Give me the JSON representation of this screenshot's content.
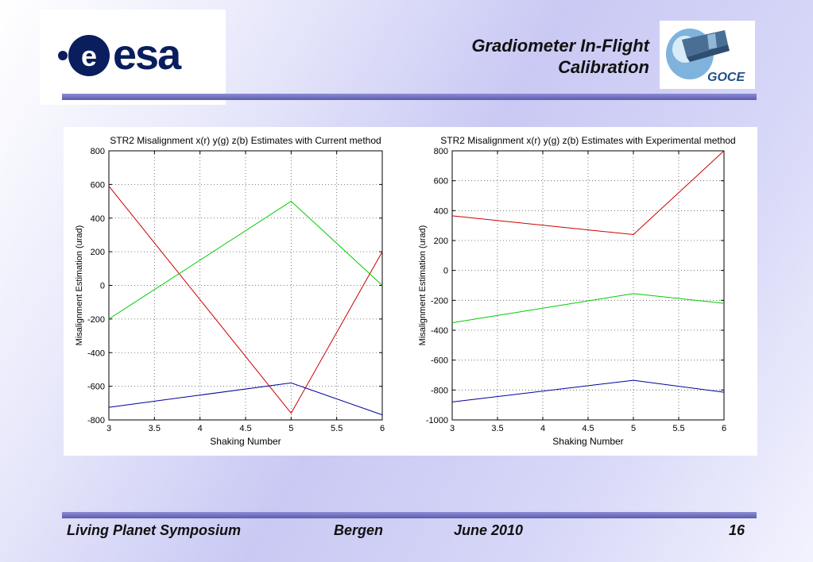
{
  "header": {
    "title_line1": "Gradiometer In-Flight",
    "title_line2": "Calibration",
    "esa_logo_text": "esa",
    "goce_logo_text": "GOCE"
  },
  "footer": {
    "left": "Living Planet Symposium",
    "center": "Bergen",
    "date": "June 2010",
    "page": "16"
  },
  "colors": {
    "x_series": "#cc0000",
    "y_series": "#00cc00",
    "z_series": "#000099",
    "esa_blue": "#0a1e5e",
    "bar": "#6b6bbd"
  },
  "chart_data": [
    {
      "type": "line",
      "title": "STR2 Misalignment x(r) y(g) z(b) Estimates with Current method",
      "xlabel": "Shaking Number",
      "ylabel": "Misalignment Estimation (urad)",
      "xlim": [
        3,
        6
      ],
      "ylim": [
        -800,
        800
      ],
      "xticks": [
        "3",
        "3.5",
        "4",
        "4.5",
        "5",
        "5.5",
        "6"
      ],
      "yticks": [
        "-800",
        "-600",
        "-400",
        "-200",
        "0",
        "200",
        "400",
        "600",
        "800"
      ],
      "grid": true,
      "x": [
        3,
        5,
        6
      ],
      "series": [
        {
          "name": "x",
          "color": "#cc0000",
          "values": [
            590,
            -760,
            200
          ]
        },
        {
          "name": "y",
          "color": "#00cc00",
          "values": [
            -200,
            500,
            0
          ]
        },
        {
          "name": "z",
          "color": "#000099",
          "values": [
            -725,
            -580,
            -770
          ]
        }
      ]
    },
    {
      "type": "line",
      "title": "STR2 Misalignment x(r) y(g) z(b) Estimates with Experimental method",
      "xlabel": "Shaking Number",
      "ylabel": "Misalignment Estimation (urad)",
      "xlim": [
        3,
        6
      ],
      "ylim": [
        -1000,
        800
      ],
      "xticks": [
        "3",
        "3.5",
        "4",
        "4.5",
        "5",
        "5.5",
        "6"
      ],
      "yticks": [
        "-1000",
        "-800",
        "-600",
        "-400",
        "-200",
        "0",
        "200",
        "400",
        "600",
        "800"
      ],
      "grid": true,
      "x": [
        3,
        5,
        6
      ],
      "series": [
        {
          "name": "x",
          "color": "#cc0000",
          "values": [
            365,
            240,
            800
          ]
        },
        {
          "name": "y",
          "color": "#00cc00",
          "values": [
            -350,
            -155,
            -220
          ]
        },
        {
          "name": "z",
          "color": "#000099",
          "values": [
            -880,
            -735,
            -815
          ]
        }
      ]
    }
  ]
}
